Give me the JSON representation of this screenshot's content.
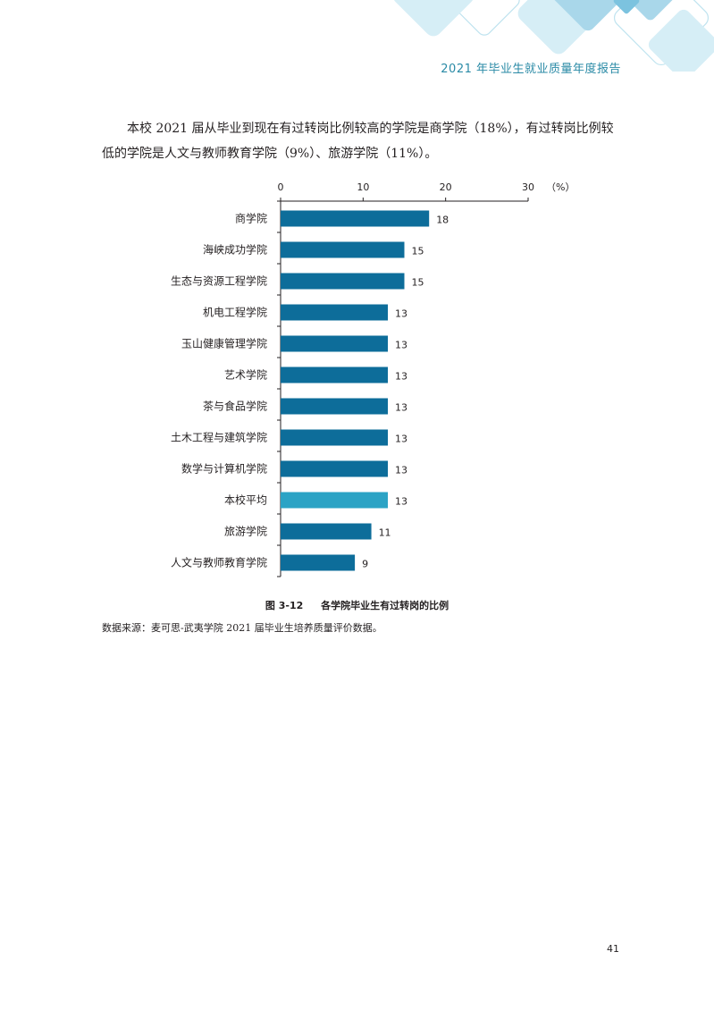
{
  "header": {
    "title": "2021 年毕业生就业质量年度报告"
  },
  "paragraph": "本校 2021 届从毕业到现在有过转岗比例较高的学院是商学院（18%），有过转岗比例较低的学院是人文与教师教育学院（9%）、旅游学院（11%）。",
  "chart_data": {
    "type": "bar",
    "orientation": "horizontal",
    "categories": [
      "商学院",
      "海峡成功学院",
      "生态与资源工程学院",
      "机电工程学院",
      "玉山健康管理学院",
      "艺术学院",
      "茶与食品学院",
      "土木工程与建筑学院",
      "数学与计算机学院",
      "本校平均",
      "旅游学院",
      "人文与教师教育学院"
    ],
    "values": [
      18,
      15,
      15,
      13,
      13,
      13,
      13,
      13,
      13,
      13,
      11,
      9
    ],
    "xlim": [
      0,
      30
    ],
    "x_ticks": [
      0,
      10,
      20,
      30
    ],
    "unit_label": "（%）",
    "axis_position": "top",
    "grid": false,
    "legend": "none",
    "highlight_category": "本校平均",
    "colors": {
      "bar": "#0d6d9a",
      "highlight": "#2ba3c5",
      "axis": "#231f20"
    }
  },
  "caption": {
    "number": "图 3-12",
    "text": "各学院毕业生有过转岗的比例"
  },
  "source": "数据来源：麦可思-武夷学院 2021 届毕业生培养质量评价数据。",
  "page_number": "41"
}
